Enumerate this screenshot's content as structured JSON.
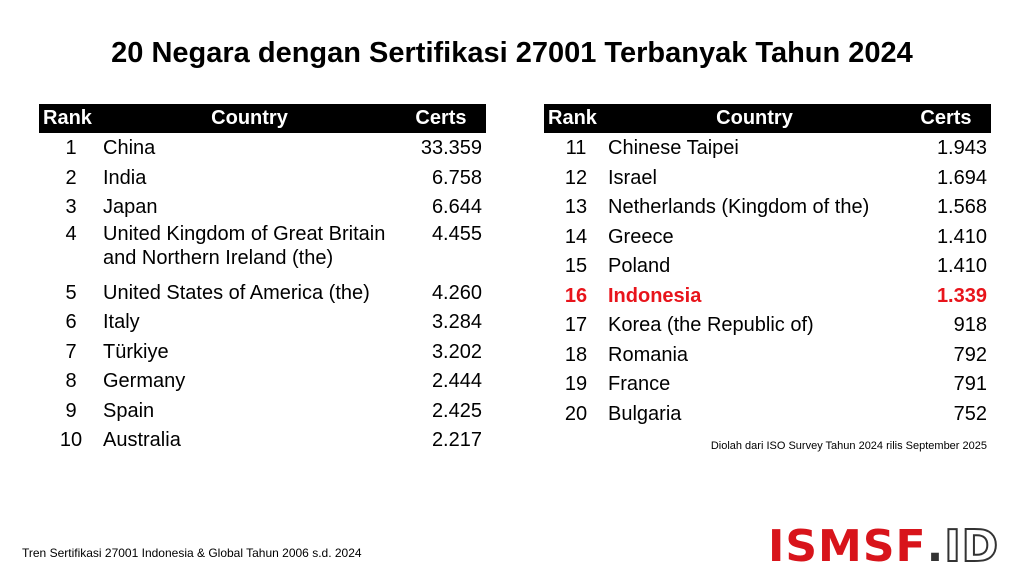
{
  "title": "20 Negara dengan Sertifikasi 27001 Terbanyak Tahun 2024",
  "table_headers": {
    "rank": "Rank",
    "country": "Country",
    "certs": "Certs"
  },
  "left_rows": [
    {
      "rank": "1",
      "country": "China",
      "certs": "33.359"
    },
    {
      "rank": "2",
      "country": "India",
      "certs": "6.758"
    },
    {
      "rank": "3",
      "country": "Japan",
      "certs": "6.644"
    },
    {
      "rank": "4",
      "country": "United Kingdom of Great Britain and Northern Ireland (the)",
      "certs": "4.455"
    },
    {
      "rank": "5",
      "country": "United States of America (the)",
      "certs": "4.260"
    },
    {
      "rank": "6",
      "country": "Italy",
      "certs": "3.284"
    },
    {
      "rank": "7",
      "country": "Türkiye",
      "certs": "3.202"
    },
    {
      "rank": "8",
      "country": "Germany",
      "certs": "2.444"
    },
    {
      "rank": "9",
      "country": "Spain",
      "certs": "2.425"
    },
    {
      "rank": "10",
      "country": "Australia",
      "certs": "2.217"
    }
  ],
  "right_rows": [
    {
      "rank": "11",
      "country": "Chinese Taipei",
      "certs": "1.943"
    },
    {
      "rank": "12",
      "country": "Israel",
      "certs": "1.694"
    },
    {
      "rank": "13",
      "country": "Netherlands (Kingdom of the)",
      "certs": "1.568"
    },
    {
      "rank": "14",
      "country": "Greece",
      "certs": "1.410"
    },
    {
      "rank": "15",
      "country": "Poland",
      "certs": "1.410"
    },
    {
      "rank": "16",
      "country": "Indonesia",
      "certs": "1.339"
    },
    {
      "rank": "17",
      "country": "Korea (the Republic of)",
      "certs": "918"
    },
    {
      "rank": "18",
      "country": "Romania",
      "certs": "792"
    },
    {
      "rank": "19",
      "country": "France",
      "certs": "791"
    },
    {
      "rank": "20",
      "country": "Bulgaria",
      "certs": "752"
    }
  ],
  "highlight_country": "Indonesia",
  "highlight_color": "#e8141b",
  "source_note": "Diolah dari ISO Survey Tahun 2024 rilis September 2025",
  "footer_caption": "Tren Sertifikasi 27001 Indonesia & Global Tahun 2006 s.d. 2024",
  "logo": {
    "main": "ISMSF",
    "dot": ".",
    "suffix": "ID",
    "brand_color": "#d8141b"
  }
}
